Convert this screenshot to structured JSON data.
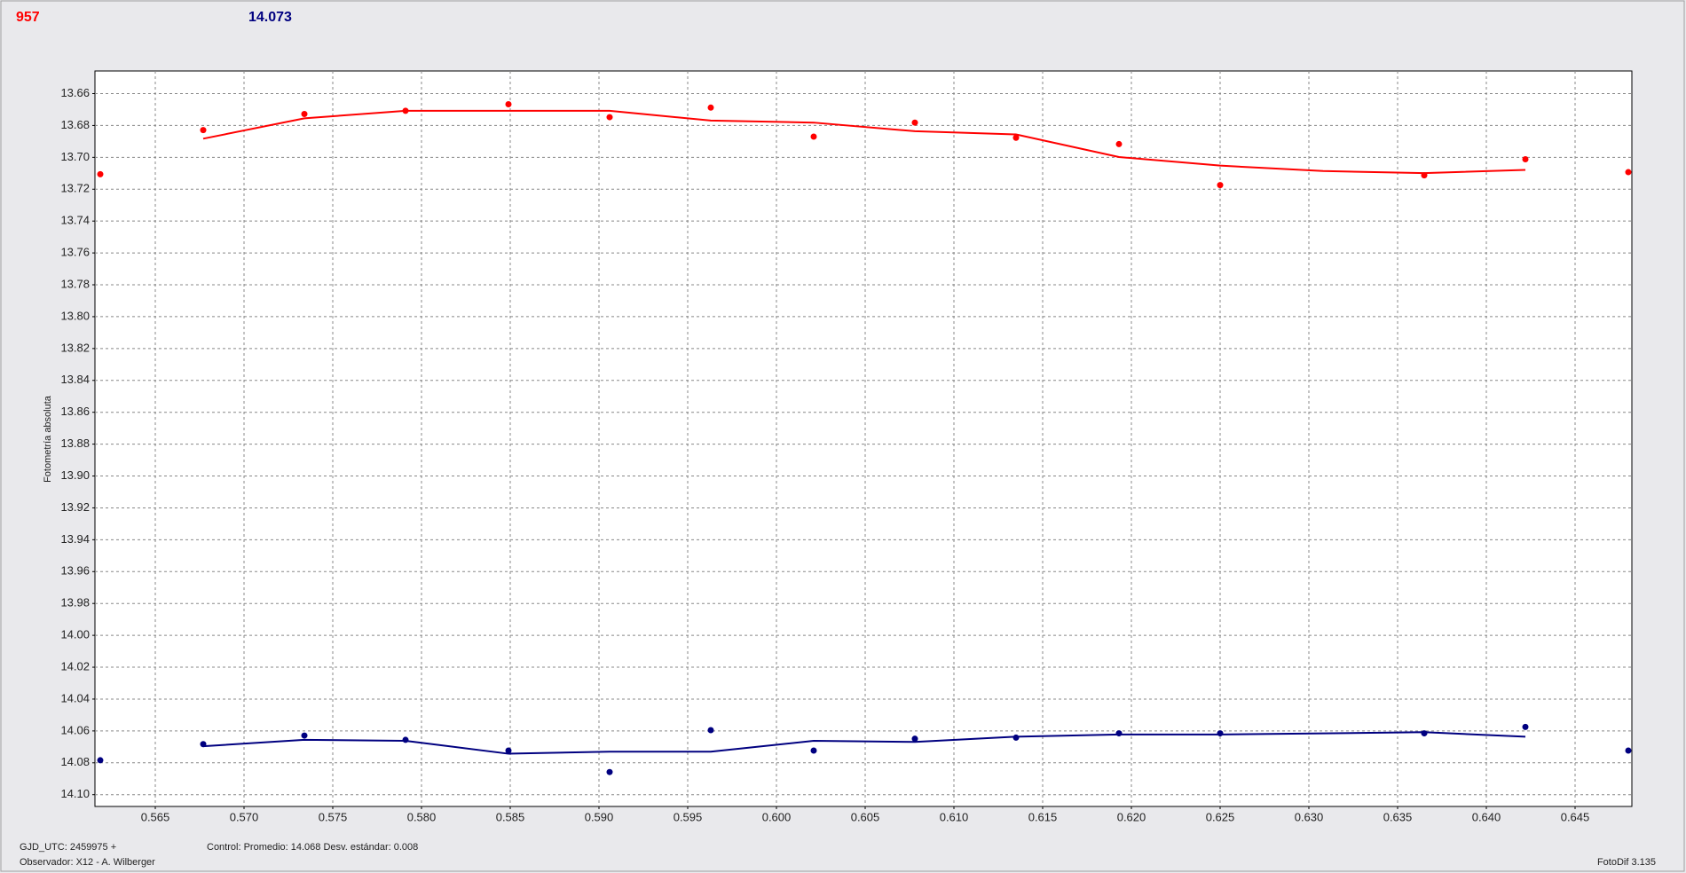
{
  "header": {
    "left": "957",
    "right": "14.073"
  },
  "footer": {
    "epoch": "GJD_UTC: 2459975 +",
    "observer": "Observador: X12 - A. Wilberger",
    "control": "Control: Promedio: 14.068  Desv. estándar: 0.008",
    "version": "FotoDif 3.135"
  },
  "chart_data": {
    "type": "scatter",
    "ylabel": "Fotometría absoluta",
    "xlim": [
      0.5616,
      0.6482
    ],
    "ylim": [
      13.6458,
      14.1074
    ],
    "y_reversed": true,
    "grid": true,
    "xticks": [
      0.565,
      {
        "value": 0.57,
        "label": "0.570"
      },
      0.575,
      {
        "value": 0.58,
        "label": "0.580"
      },
      0.585,
      {
        "value": 0.59,
        "label": "0.590"
      },
      0.595,
      {
        "value": 0.6,
        "label": "0.600"
      },
      0.605,
      {
        "value": 0.61,
        "label": "0.610"
      },
      0.615,
      {
        "value": 0.62,
        "label": "0.620"
      },
      0.625,
      {
        "value": 0.63,
        "label": "0.630"
      },
      0.635,
      {
        "value": 0.64,
        "label": "0.640"
      },
      0.645
    ],
    "yticks": [
      13.66,
      13.68,
      {
        "value": 13.7,
        "label": "13.70"
      },
      13.72,
      13.74,
      13.76,
      13.78,
      {
        "value": 13.8,
        "label": "13.80"
      },
      13.82,
      13.84,
      13.86,
      13.88,
      {
        "value": 13.9,
        "label": "13.90"
      },
      13.92,
      13.94,
      13.96,
      13.98,
      {
        "value": 14.0,
        "label": "14.00"
      },
      14.02,
      14.04,
      14.06,
      14.08,
      {
        "value": 14.1,
        "label": "14.10"
      }
    ],
    "series": [
      {
        "mode": "markers",
        "color": "#ff0000",
        "x": [
          0.5619,
          0.5677,
          0.5734,
          0.5791,
          0.5849,
          0.5906,
          0.5963,
          0.6021,
          0.6078,
          0.6135,
          0.6193,
          0.625,
          0.6365,
          0.6422,
          0.648
        ],
        "values": [
          13.7106,
          13.6829,
          13.6728,
          13.6708,
          13.6667,
          13.6748,
          13.6688,
          13.687,
          13.6782,
          13.6877,
          13.6917,
          13.7174,
          13.7113,
          13.7012,
          13.7093
        ]
      },
      {
        "mode": "line",
        "color": "#ff0000",
        "x": [
          0.5677,
          0.5734,
          0.5791,
          0.5849,
          0.5906,
          0.5963,
          0.6021,
          0.6078,
          0.6135,
          0.6193,
          0.625,
          0.6308,
          0.6365,
          0.6422
        ],
        "values": [
          13.6883,
          13.6755,
          13.6708,
          13.6708,
          13.6708,
          13.6769,
          13.6782,
          13.6836,
          13.6856,
          13.6998,
          13.7052,
          13.7086,
          13.7099,
          13.7079
        ]
      },
      {
        "mode": "markers",
        "color": "#000080",
        "x": [
          0.5619,
          0.5677,
          0.5734,
          0.5791,
          0.5849,
          0.5906,
          0.5963,
          0.6021,
          0.6078,
          0.6135,
          0.6193,
          0.625,
          0.6365,
          0.6422,
          0.648
        ],
        "values": [
          14.0784,
          14.0683,
          14.0629,
          14.0656,
          14.0723,
          14.0858,
          14.0595,
          14.0723,
          14.0649,
          14.0642,
          14.0615,
          14.0615,
          14.0615,
          14.0575,
          14.0723
        ]
      },
      {
        "mode": "line",
        "color": "#000080",
        "x": [
          0.5677,
          0.5734,
          0.5791,
          0.5849,
          0.5906,
          0.5963,
          0.6021,
          0.6078,
          0.6135,
          0.6193,
          0.625,
          0.6308,
          0.6365,
          0.6422
        ],
        "values": [
          14.0696,
          14.0656,
          14.0662,
          14.0743,
          14.073,
          14.073,
          14.0662,
          14.0669,
          14.0636,
          14.0622,
          14.0622,
          14.0615,
          14.0608,
          14.0636
        ]
      }
    ]
  }
}
